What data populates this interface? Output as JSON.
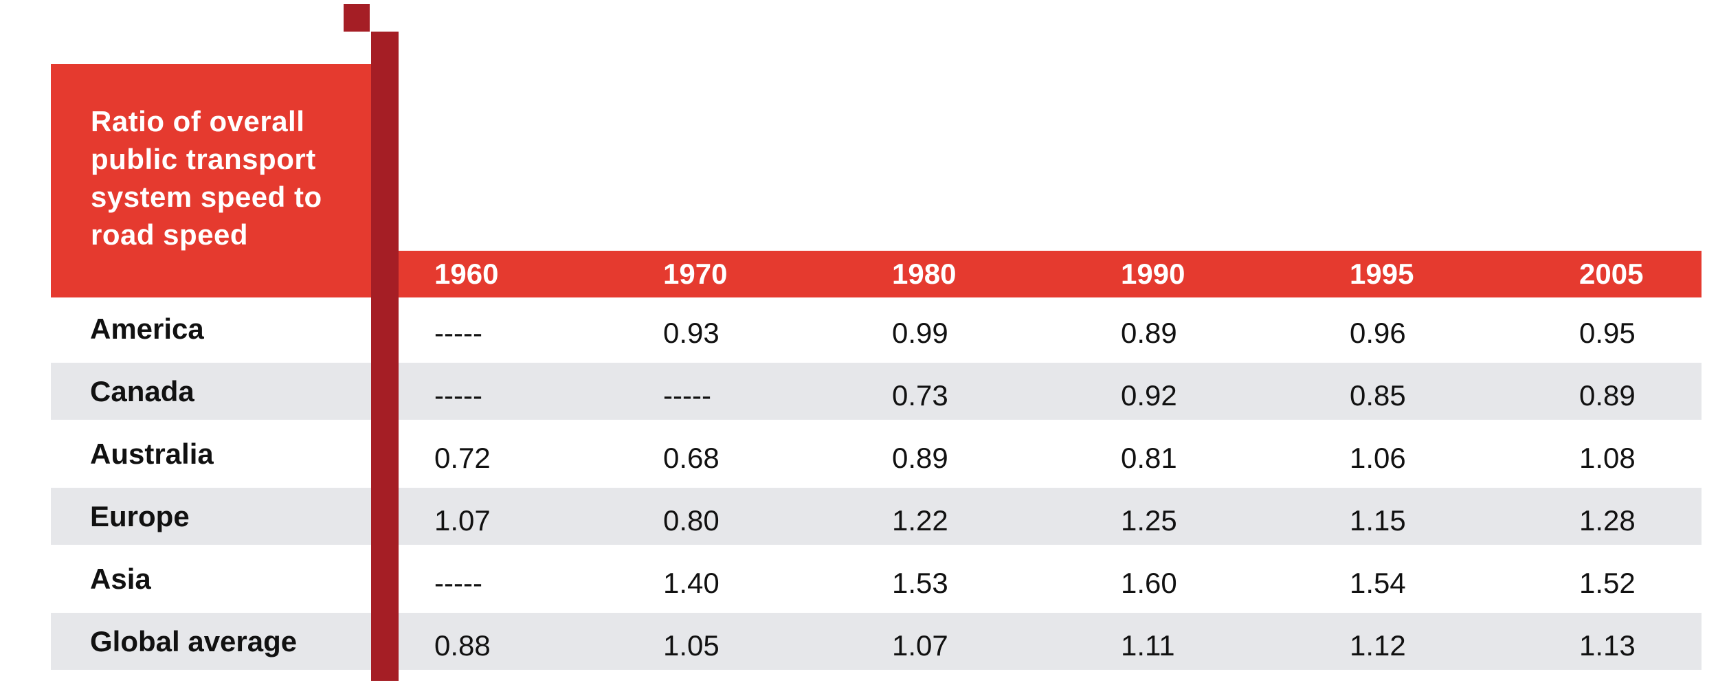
{
  "colors": {
    "accent_red": "#e53a2f",
    "dark_red": "#a51e25",
    "row_stripe": "#e6e7ea",
    "text": "#111111"
  },
  "chart_data": {
    "type": "table",
    "title": "Ratio of overall public transport system speed to road speed",
    "columns": [
      "1960",
      "1970",
      "1980",
      "1990",
      "1995",
      "2005"
    ],
    "rows": [
      {
        "label": "America",
        "values": [
          "-----",
          "0.93",
          "0.99",
          "0.89",
          "0.96",
          "0.95"
        ]
      },
      {
        "label": "Canada",
        "values": [
          "-----",
          "-----",
          "0.73",
          "0.92",
          "0.85",
          "0.89"
        ]
      },
      {
        "label": "Australia",
        "values": [
          "0.72",
          "0.68",
          "0.89",
          "0.81",
          "1.06",
          "1.08"
        ]
      },
      {
        "label": "Europe",
        "values": [
          "1.07",
          "0.80",
          "1.22",
          "1.25",
          "1.15",
          "1.28"
        ]
      },
      {
        "label": "Asia",
        "values": [
          "-----",
          "1.40",
          "1.53",
          "1.60",
          "1.54",
          "1.52"
        ]
      },
      {
        "label": "Global average",
        "values": [
          "0.88",
          "1.05",
          "1.07",
          "1.11",
          "1.12",
          "1.13"
        ]
      }
    ]
  }
}
